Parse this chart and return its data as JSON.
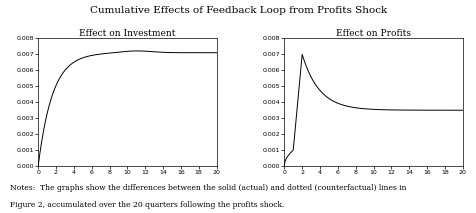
{
  "title": "Cumulative Effects of Feedback Loop from Profits Shock",
  "title_fontsize": 7.5,
  "left_title": "Effect on Investment",
  "right_title": "Effect on Profits",
  "subtitle_fontsize": 6.5,
  "xlim": [
    0,
    20
  ],
  "ylim": [
    0,
    0.008
  ],
  "yticks": [
    0.0,
    0.001,
    0.002,
    0.003,
    0.004,
    0.005,
    0.006,
    0.007,
    0.008
  ],
  "xticks": [
    0,
    2,
    4,
    6,
    8,
    10,
    12,
    14,
    16,
    18,
    20
  ],
  "tick_fontsize": 4.5,
  "line_color": "#000000",
  "bg_color": "#ffffff",
  "notes_line1": "Notes:  The graphs show the differences between the solid (actual) and dotted (counterfactual) lines in",
  "notes_line2": "Figure 2, accumulated over the 20 quarters following the profits shock.",
  "notes_fontsize": 5.5
}
